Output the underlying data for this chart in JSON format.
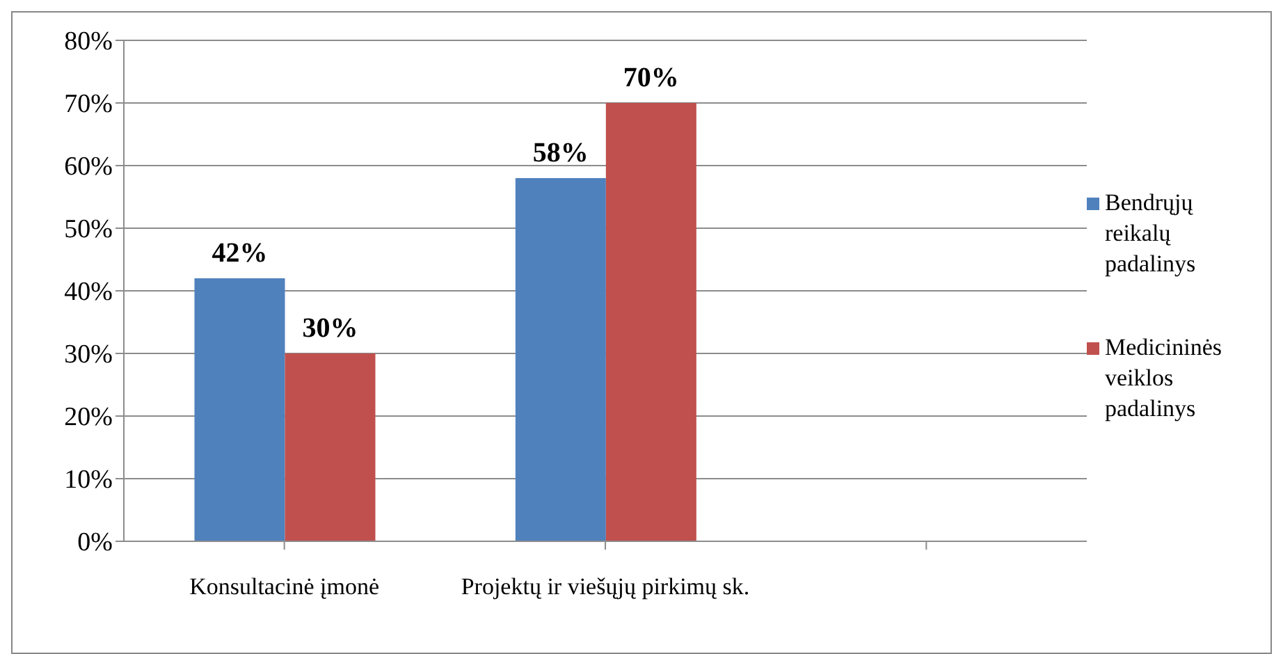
{
  "chart_data": {
    "type": "bar",
    "categories": [
      "Konsultacinė įmonė",
      "Projektų ir viešųjų pirkimų sk.",
      null
    ],
    "series": [
      {
        "name": "Bendrųjų reikalų padalinys",
        "color": "#4f81bd",
        "values": [
          42,
          58,
          null
        ],
        "value_labels": [
          "42%",
          "58%",
          null
        ]
      },
      {
        "name": "Medicininės veiklos padalinys",
        "color": "#c0504d",
        "values": [
          30,
          70,
          null
        ],
        "value_labels": [
          "30%",
          "70%",
          null
        ]
      }
    ],
    "ylim": [
      0,
      80
    ],
    "yticks": [
      {
        "value": 0,
        "label": "0%"
      },
      {
        "value": 10,
        "label": "10%"
      },
      {
        "value": 20,
        "label": "20%"
      },
      {
        "value": 30,
        "label": "30%"
      },
      {
        "value": 40,
        "label": "40%"
      },
      {
        "value": 50,
        "label": "50%"
      },
      {
        "value": 60,
        "label": "60%"
      },
      {
        "value": 70,
        "label": "70%"
      },
      {
        "value": 80,
        "label": "80%"
      }
    ],
    "grid": "y",
    "legend": "right"
  }
}
